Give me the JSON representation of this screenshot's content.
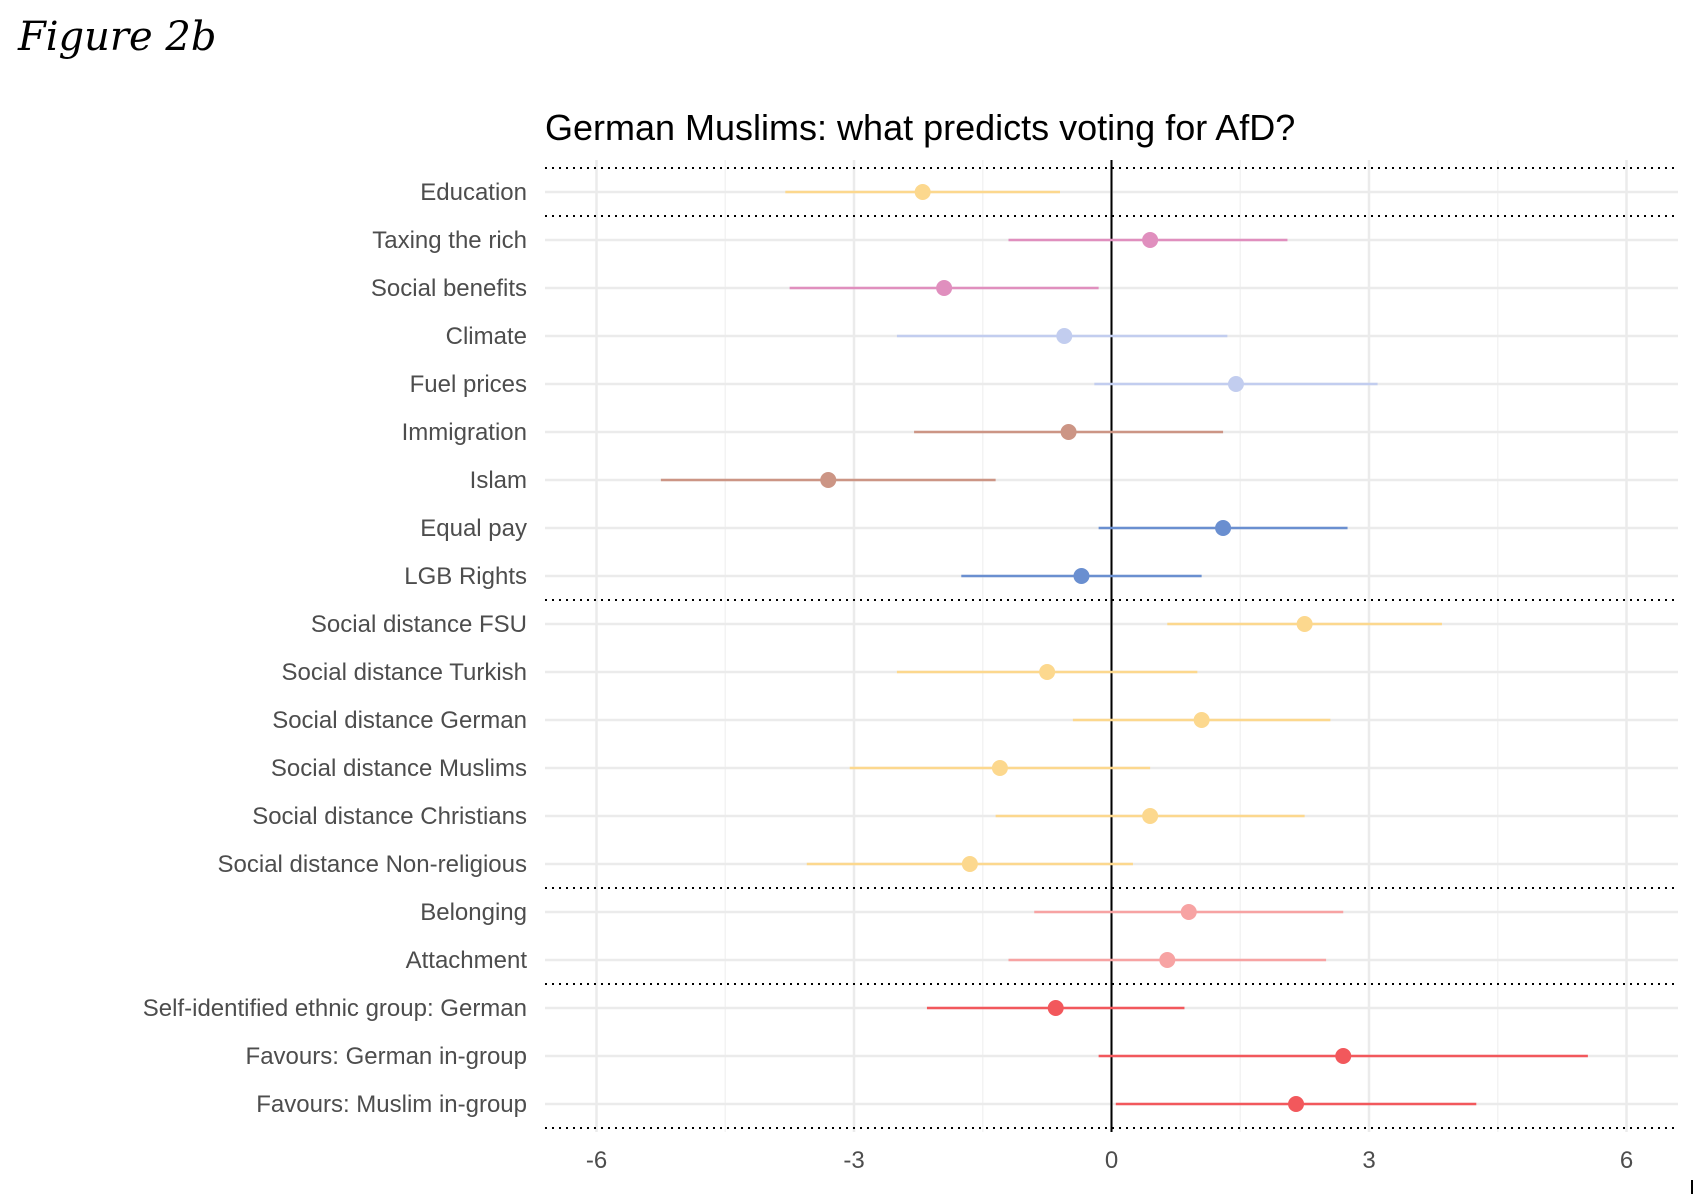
{
  "figure_label": "Figure 2b",
  "chart_data": {
    "type": "coefficient-plot",
    "title": "German Muslims: what predicts voting for AfD?",
    "xlim": [
      -6.6,
      6.6
    ],
    "x_ticks": [
      -6,
      -3,
      0,
      3,
      6
    ],
    "x_tick_labels": [
      "-6",
      "-3",
      "0",
      "3",
      "6"
    ],
    "grid": true,
    "reference_line_x": 0,
    "group_separators_after": [
      "Education",
      "LGB Rights",
      "Social distance Non-religious",
      "Attachment"
    ],
    "colors": {
      "yellow": "#fcd88e",
      "pink": "#e08fbe",
      "lightblue": "#c2cdef",
      "brown": "#cc9585",
      "blue": "#6a8fd0",
      "salmon": "#f7a3a3",
      "red": "#f2585c"
    },
    "points": [
      {
        "label": "Education",
        "estimate": -2.2,
        "low": -3.8,
        "high": -0.6,
        "color": "yellow"
      },
      {
        "label": "Taxing the rich",
        "estimate": 0.45,
        "low": -1.2,
        "high": 2.05,
        "color": "pink"
      },
      {
        "label": "Social benefits",
        "estimate": -1.95,
        "low": -3.75,
        "high": -0.15,
        "color": "pink"
      },
      {
        "label": "Climate",
        "estimate": -0.55,
        "low": -2.5,
        "high": 1.35,
        "color": "lightblue"
      },
      {
        "label": "Fuel prices",
        "estimate": 1.45,
        "low": -0.2,
        "high": 3.1,
        "color": "lightblue"
      },
      {
        "label": "Immigration",
        "estimate": -0.5,
        "low": -2.3,
        "high": 1.3,
        "color": "brown"
      },
      {
        "label": "Islam",
        "estimate": -3.3,
        "low": -5.25,
        "high": -1.35,
        "color": "brown"
      },
      {
        "label": "Equal pay",
        "estimate": 1.3,
        "low": -0.15,
        "high": 2.75,
        "color": "blue"
      },
      {
        "label": "LGB Rights",
        "estimate": -0.35,
        "low": -1.75,
        "high": 1.05,
        "color": "blue"
      },
      {
        "label": "Social distance FSU",
        "estimate": 2.25,
        "low": 0.65,
        "high": 3.85,
        "color": "yellow"
      },
      {
        "label": "Social distance Turkish",
        "estimate": -0.75,
        "low": -2.5,
        "high": 1.0,
        "color": "yellow"
      },
      {
        "label": "Social distance German",
        "estimate": 1.05,
        "low": -0.45,
        "high": 2.55,
        "color": "yellow"
      },
      {
        "label": "Social distance Muslims",
        "estimate": -1.3,
        "low": -3.05,
        "high": 0.45,
        "color": "yellow"
      },
      {
        "label": "Social distance Christians",
        "estimate": 0.45,
        "low": -1.35,
        "high": 2.25,
        "color": "yellow"
      },
      {
        "label": "Social distance Non-religious",
        "estimate": -1.65,
        "low": -3.55,
        "high": 0.25,
        "color": "yellow"
      },
      {
        "label": "Belonging",
        "estimate": 0.9,
        "low": -0.9,
        "high": 2.7,
        "color": "salmon"
      },
      {
        "label": "Attachment",
        "estimate": 0.65,
        "low": -1.2,
        "high": 2.5,
        "color": "salmon"
      },
      {
        "label": "Self-identified ethnic group: German",
        "estimate": -0.65,
        "low": -2.15,
        "high": 0.85,
        "color": "red"
      },
      {
        "label": "Favours: German in-group",
        "estimate": 2.7,
        "low": -0.15,
        "high": 5.55,
        "color": "red"
      },
      {
        "label": "Favours: Muslim in-group",
        "estimate": 2.15,
        "low": 0.05,
        "high": 4.25,
        "color": "red"
      }
    ]
  }
}
